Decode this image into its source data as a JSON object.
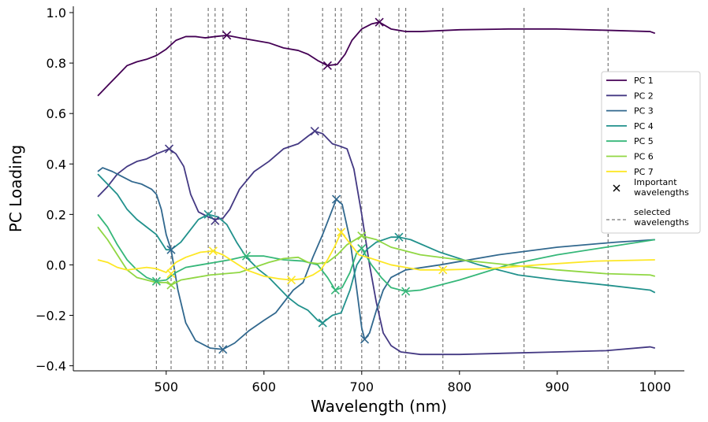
{
  "chart_data": {
    "type": "line",
    "xlabel": "Wavelength (nm)",
    "ylabel": "PC Loading",
    "xlim": [
      405,
      1030
    ],
    "ylim": [
      -0.42,
      1.025
    ],
    "x_ticks": [
      500,
      600,
      700,
      800,
      900,
      1000
    ],
    "y_ticks": [
      -0.4,
      -0.2,
      0.0,
      0.2,
      0.4,
      0.6,
      0.8,
      1.0
    ],
    "x_tick_labels": [
      "500",
      "600",
      "700",
      "800",
      "900",
      "1000"
    ],
    "y_tick_labels": [
      "−0.4",
      "−0.2",
      "0.0",
      "0.2",
      "0.4",
      "0.6",
      "0.8",
      "1.0"
    ],
    "grid": false,
    "legend_position": "right",
    "selected_wavelengths": [
      490,
      505,
      543,
      550,
      558,
      582,
      625,
      660,
      673,
      679,
      700,
      718,
      738,
      745,
      783,
      866,
      952
    ],
    "series": [
      {
        "name": "PC 1",
        "color": "#440154",
        "points": [
          [
            430,
            0.67
          ],
          [
            440,
            0.71
          ],
          [
            450,
            0.75
          ],
          [
            460,
            0.79
          ],
          [
            470,
            0.805
          ],
          [
            480,
            0.815
          ],
          [
            490,
            0.83
          ],
          [
            500,
            0.855
          ],
          [
            510,
            0.89
          ],
          [
            520,
            0.905
          ],
          [
            530,
            0.905
          ],
          [
            540,
            0.9
          ],
          [
            550,
            0.905
          ],
          [
            562,
            0.91
          ],
          [
            575,
            0.9
          ],
          [
            590,
            0.89
          ],
          [
            605,
            0.88
          ],
          [
            620,
            0.86
          ],
          [
            635,
            0.85
          ],
          [
            645,
            0.835
          ],
          [
            655,
            0.81
          ],
          [
            665,
            0.79
          ],
          [
            675,
            0.795
          ],
          [
            683,
            0.835
          ],
          [
            690,
            0.89
          ],
          [
            700,
            0.935
          ],
          [
            710,
            0.955
          ],
          [
            718,
            0.962
          ],
          [
            730,
            0.935
          ],
          [
            745,
            0.925
          ],
          [
            760,
            0.925
          ],
          [
            800,
            0.932
          ],
          [
            850,
            0.935
          ],
          [
            900,
            0.935
          ],
          [
            950,
            0.93
          ],
          [
            995,
            0.925
          ],
          [
            1000,
            0.918
          ]
        ],
        "important": [
          [
            562,
            0.91
          ],
          [
            665,
            0.79
          ],
          [
            718,
            0.962
          ]
        ]
      },
      {
        "name": "PC 2",
        "color": "#443983",
        "points": [
          [
            430,
            0.27
          ],
          [
            440,
            0.31
          ],
          [
            450,
            0.36
          ],
          [
            460,
            0.39
          ],
          [
            470,
            0.41
          ],
          [
            480,
            0.42
          ],
          [
            490,
            0.44
          ],
          [
            503,
            0.46
          ],
          [
            510,
            0.44
          ],
          [
            518,
            0.39
          ],
          [
            525,
            0.28
          ],
          [
            533,
            0.21
          ],
          [
            543,
            0.19
          ],
          [
            550,
            0.18
          ],
          [
            558,
            0.185
          ],
          [
            565,
            0.22
          ],
          [
            575,
            0.3
          ],
          [
            590,
            0.37
          ],
          [
            605,
            0.41
          ],
          [
            620,
            0.46
          ],
          [
            635,
            0.48
          ],
          [
            645,
            0.51
          ],
          [
            652,
            0.53
          ],
          [
            660,
            0.52
          ],
          [
            670,
            0.48
          ],
          [
            678,
            0.47
          ],
          [
            685,
            0.46
          ],
          [
            692,
            0.38
          ],
          [
            700,
            0.2
          ],
          [
            708,
            0.0
          ],
          [
            715,
            -0.15
          ],
          [
            722,
            -0.27
          ],
          [
            730,
            -0.32
          ],
          [
            740,
            -0.345
          ],
          [
            760,
            -0.355
          ],
          [
            800,
            -0.355
          ],
          [
            850,
            -0.35
          ],
          [
            900,
            -0.345
          ],
          [
            950,
            -0.34
          ],
          [
            995,
            -0.325
          ],
          [
            1000,
            -0.33
          ]
        ],
        "important": [
          [
            503,
            0.46
          ],
          [
            550,
            0.175
          ],
          [
            652,
            0.53
          ]
        ]
      },
      {
        "name": "PC 3",
        "color": "#31688e",
        "points": [
          [
            430,
            0.37
          ],
          [
            435,
            0.385
          ],
          [
            445,
            0.37
          ],
          [
            455,
            0.35
          ],
          [
            465,
            0.33
          ],
          [
            475,
            0.32
          ],
          [
            485,
            0.3
          ],
          [
            490,
            0.28
          ],
          [
            495,
            0.22
          ],
          [
            500,
            0.12
          ],
          [
            505,
            0.06
          ],
          [
            512,
            -0.1
          ],
          [
            520,
            -0.23
          ],
          [
            530,
            -0.3
          ],
          [
            545,
            -0.33
          ],
          [
            558,
            -0.335
          ],
          [
            570,
            -0.31
          ],
          [
            585,
            -0.26
          ],
          [
            600,
            -0.22
          ],
          [
            612,
            -0.19
          ],
          [
            622,
            -0.14
          ],
          [
            630,
            -0.1
          ],
          [
            640,
            -0.07
          ],
          [
            650,
            0.03
          ],
          [
            660,
            0.12
          ],
          [
            668,
            0.2
          ],
          [
            674,
            0.26
          ],
          [
            680,
            0.24
          ],
          [
            688,
            0.1
          ],
          [
            695,
            -0.1
          ],
          [
            700,
            -0.25
          ],
          [
            703,
            -0.295
          ],
          [
            708,
            -0.27
          ],
          [
            715,
            -0.18
          ],
          [
            722,
            -0.1
          ],
          [
            730,
            -0.05
          ],
          [
            745,
            -0.02
          ],
          [
            780,
            0.0
          ],
          [
            840,
            0.04
          ],
          [
            900,
            0.07
          ],
          [
            960,
            0.09
          ],
          [
            1000,
            0.1
          ]
        ],
        "important": [
          [
            505,
            0.06
          ],
          [
            558,
            -0.335
          ],
          [
            674,
            0.26
          ],
          [
            703,
            -0.295
          ]
        ]
      },
      {
        "name": "PC 4",
        "color": "#21918c",
        "points": [
          [
            430,
            0.36
          ],
          [
            440,
            0.32
          ],
          [
            450,
            0.28
          ],
          [
            460,
            0.22
          ],
          [
            470,
            0.18
          ],
          [
            480,
            0.15
          ],
          [
            490,
            0.12
          ],
          [
            500,
            0.06
          ],
          [
            505,
            0.06
          ],
          [
            515,
            0.09
          ],
          [
            525,
            0.14
          ],
          [
            533,
            0.18
          ],
          [
            543,
            0.2
          ],
          [
            553,
            0.19
          ],
          [
            562,
            0.16
          ],
          [
            572,
            0.09
          ],
          [
            582,
            0.03
          ],
          [
            595,
            -0.02
          ],
          [
            605,
            -0.05
          ],
          [
            615,
            -0.09
          ],
          [
            625,
            -0.13
          ],
          [
            635,
            -0.16
          ],
          [
            645,
            -0.18
          ],
          [
            655,
            -0.22
          ],
          [
            660,
            -0.23
          ],
          [
            670,
            -0.2
          ],
          [
            679,
            -0.19
          ],
          [
            688,
            -0.1
          ],
          [
            695,
            0.0
          ],
          [
            705,
            0.06
          ],
          [
            715,
            0.09
          ],
          [
            730,
            0.11
          ],
          [
            738,
            0.11
          ],
          [
            750,
            0.1
          ],
          [
            780,
            0.05
          ],
          [
            820,
            0.0
          ],
          [
            860,
            -0.04
          ],
          [
            900,
            -0.06
          ],
          [
            950,
            -0.08
          ],
          [
            995,
            -0.1
          ],
          [
            1000,
            -0.11
          ]
        ],
        "important": [
          [
            543,
            0.2
          ],
          [
            660,
            -0.23
          ],
          [
            738,
            0.11
          ]
        ]
      },
      {
        "name": "PC 5",
        "color": "#35b779",
        "points": [
          [
            430,
            0.2
          ],
          [
            440,
            0.15
          ],
          [
            450,
            0.08
          ],
          [
            460,
            0.02
          ],
          [
            470,
            -0.02
          ],
          [
            480,
            -0.05
          ],
          [
            490,
            -0.065
          ],
          [
            500,
            -0.06
          ],
          [
            510,
            -0.03
          ],
          [
            520,
            -0.01
          ],
          [
            535,
            0.0
          ],
          [
            550,
            0.01
          ],
          [
            565,
            0.02
          ],
          [
            582,
            0.035
          ],
          [
            600,
            0.035
          ],
          [
            620,
            0.02
          ],
          [
            640,
            0.015
          ],
          [
            655,
            0.0
          ],
          [
            665,
            -0.05
          ],
          [
            673,
            -0.1
          ],
          [
            680,
            -0.09
          ],
          [
            688,
            -0.03
          ],
          [
            695,
            0.05
          ],
          [
            700,
            0.065
          ],
          [
            710,
            0.0
          ],
          [
            720,
            -0.05
          ],
          [
            730,
            -0.09
          ],
          [
            745,
            -0.105
          ],
          [
            760,
            -0.1
          ],
          [
            800,
            -0.06
          ],
          [
            850,
            0.0
          ],
          [
            900,
            0.04
          ],
          [
            950,
            0.07
          ],
          [
            1000,
            0.1
          ]
        ],
        "important": [
          [
            490,
            -0.065
          ],
          [
            582,
            0.035
          ],
          [
            673,
            -0.1
          ],
          [
            700,
            0.065
          ],
          [
            745,
            -0.105
          ]
        ]
      },
      {
        "name": "PC 6",
        "color": "#90d743",
        "points": [
          [
            430,
            0.15
          ],
          [
            440,
            0.1
          ],
          [
            450,
            0.04
          ],
          [
            460,
            -0.02
          ],
          [
            470,
            -0.05
          ],
          [
            480,
            -0.06
          ],
          [
            490,
            -0.07
          ],
          [
            500,
            -0.07
          ],
          [
            505,
            -0.08
          ],
          [
            515,
            -0.06
          ],
          [
            530,
            -0.05
          ],
          [
            545,
            -0.04
          ],
          [
            560,
            -0.035
          ],
          [
            575,
            -0.03
          ],
          [
            590,
            -0.01
          ],
          [
            605,
            0.01
          ],
          [
            620,
            0.025
          ],
          [
            635,
            0.03
          ],
          [
            645,
            0.01
          ],
          [
            655,
            0.005
          ],
          [
            665,
            0.01
          ],
          [
            675,
            0.04
          ],
          [
            685,
            0.08
          ],
          [
            700,
            0.115
          ],
          [
            715,
            0.1
          ],
          [
            730,
            0.07
          ],
          [
            760,
            0.04
          ],
          [
            800,
            0.02
          ],
          [
            850,
            0.0
          ],
          [
            900,
            -0.02
          ],
          [
            950,
            -0.035
          ],
          [
            995,
            -0.04
          ],
          [
            1000,
            -0.045
          ]
        ],
        "important": [
          [
            505,
            -0.08
          ],
          [
            700,
            0.115
          ]
        ]
      },
      {
        "name": "PC 7",
        "color": "#fde725",
        "points": [
          [
            430,
            0.02
          ],
          [
            440,
            0.01
          ],
          [
            450,
            -0.01
          ],
          [
            460,
            -0.02
          ],
          [
            470,
            -0.015
          ],
          [
            480,
            -0.01
          ],
          [
            490,
            -0.015
          ],
          [
            500,
            -0.03
          ],
          [
            510,
            0.01
          ],
          [
            520,
            0.03
          ],
          [
            535,
            0.05
          ],
          [
            548,
            0.055
          ],
          [
            558,
            0.04
          ],
          [
            570,
            0.01
          ],
          [
            582,
            -0.02
          ],
          [
            600,
            -0.045
          ],
          [
            615,
            -0.055
          ],
          [
            628,
            -0.06
          ],
          [
            640,
            -0.055
          ],
          [
            650,
            -0.04
          ],
          [
            658,
            -0.02
          ],
          [
            665,
            0.02
          ],
          [
            672,
            0.07
          ],
          [
            679,
            0.13
          ],
          [
            687,
            0.09
          ],
          [
            697,
            0.04
          ],
          [
            710,
            0.025
          ],
          [
            730,
            0.0
          ],
          [
            760,
            -0.02
          ],
          [
            783,
            -0.02
          ],
          [
            830,
            -0.015
          ],
          [
            880,
            0.0
          ],
          [
            940,
            0.015
          ],
          [
            1000,
            0.02
          ]
        ],
        "important": [
          [
            505,
            -0.035
          ],
          [
            548,
            0.055
          ],
          [
            628,
            -0.06
          ],
          [
            679,
            0.13
          ],
          [
            783,
            -0.02
          ]
        ]
      }
    ],
    "legend": {
      "markers_label": "Important\nwavelengths",
      "vlines_label": "selected\nwavelengths"
    }
  }
}
